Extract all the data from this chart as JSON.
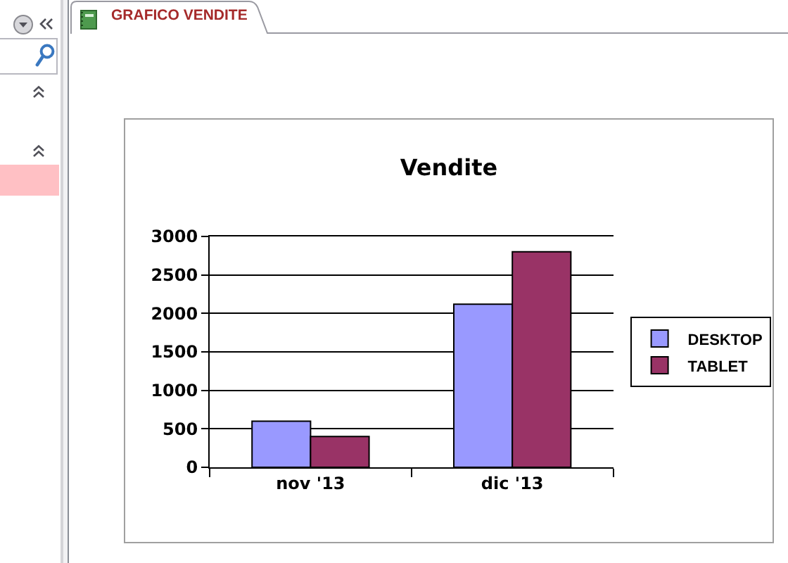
{
  "chart_data": {
    "type": "bar",
    "title": "Vendite",
    "categories": [
      "nov '13",
      "dic '13"
    ],
    "series": [
      {
        "name": "DESKTOP",
        "color": "#9999ff",
        "values": [
          600,
          2120
        ]
      },
      {
        "name": "TABLET",
        "color": "#993366",
        "values": [
          400,
          2800
        ]
      }
    ],
    "ylim": [
      0,
      3000
    ],
    "yticks": [
      0,
      500,
      1000,
      1500,
      2000,
      2500,
      3000
    ],
    "grid": "y",
    "legend": "right",
    "annotations": [
      "GRAFICO VENDITE"
    ]
  }
}
